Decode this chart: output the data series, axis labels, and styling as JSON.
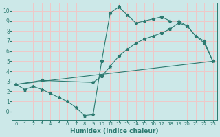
{
  "xlabel": "Humidex (Indice chaleur)",
  "background_color": "#cce8e8",
  "grid_color": "#f0c8c8",
  "line_color": "#2d7a70",
  "xlim": [
    -0.5,
    23.5
  ],
  "ylim": [
    -0.8,
    10.8
  ],
  "xticks": [
    0,
    1,
    2,
    3,
    4,
    5,
    6,
    7,
    8,
    9,
    10,
    11,
    12,
    13,
    14,
    15,
    16,
    17,
    18,
    19,
    20,
    21,
    22,
    23
  ],
  "yticks": [
    0,
    1,
    2,
    3,
    4,
    5,
    6,
    7,
    8,
    9,
    10
  ],
  "ytick_labels": [
    "-0",
    "1",
    "2",
    "3",
    "4",
    "5",
    "6",
    "7",
    "8",
    "9",
    "10"
  ],
  "line1_x": [
    0,
    1,
    2,
    3,
    4,
    5,
    6,
    7,
    8,
    9,
    10,
    11,
    12,
    13,
    14,
    15,
    16,
    17,
    18,
    19,
    20,
    21,
    22,
    23
  ],
  "line1_y": [
    2.7,
    2.2,
    2.5,
    2.2,
    1.8,
    1.4,
    1.0,
    0.4,
    -0.4,
    -0.3,
    5.0,
    9.8,
    10.4,
    9.6,
    8.8,
    9.0,
    9.2,
    9.4,
    9.0,
    9.0,
    8.5,
    7.5,
    6.8,
    5.0
  ],
  "line2_x": [
    0,
    3,
    9,
    10,
    11,
    12,
    13,
    14,
    15,
    16,
    17,
    18,
    19,
    20,
    21,
    22,
    23
  ],
  "line2_y": [
    2.7,
    3.1,
    2.9,
    3.5,
    4.5,
    5.5,
    6.2,
    6.8,
    7.2,
    7.5,
    7.8,
    8.2,
    8.8,
    8.5,
    7.5,
    7.0,
    5.0
  ],
  "line3_x": [
    0,
    23
  ],
  "line3_y": [
    2.7,
    5.0
  ]
}
